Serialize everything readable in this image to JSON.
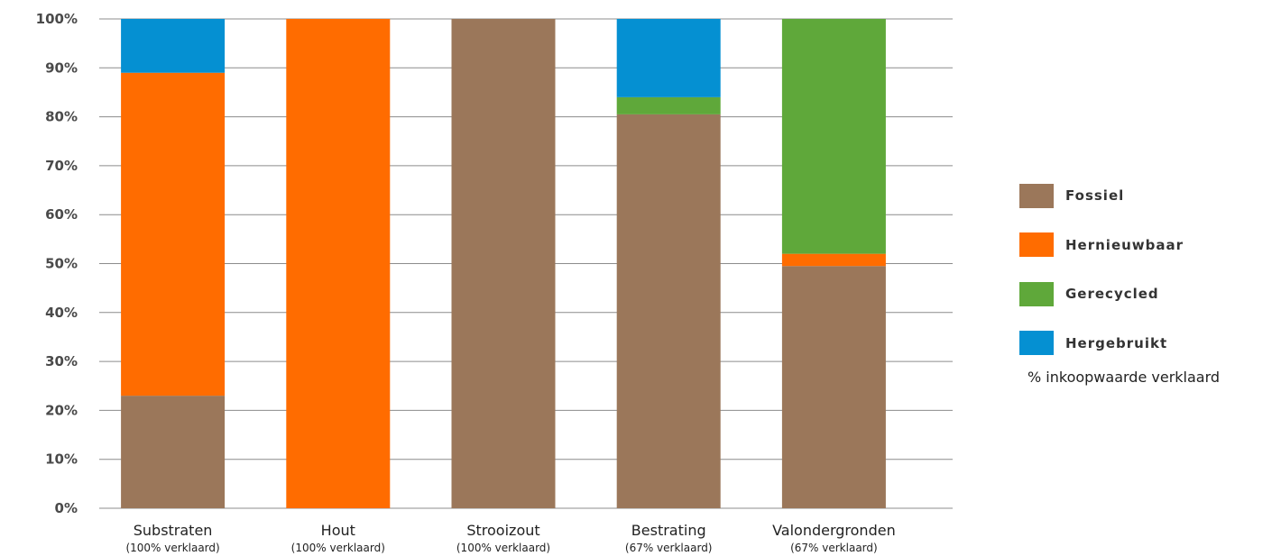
{
  "chart_data": {
    "type": "bar",
    "stacked": true,
    "categories": [
      "Substraten",
      "Hout",
      "Strooizout",
      "Bestrating",
      "Valondergronden"
    ],
    "category_subtitles": [
      "(100% verklaard)",
      "(100% verklaard)",
      "(100% verklaard)",
      "(67% verklaard)",
      "(67% verklaard)"
    ],
    "series": [
      {
        "name": "Fossiel",
        "color": "#9b775a",
        "values": [
          23,
          0,
          100,
          80.5,
          49.5
        ]
      },
      {
        "name": "Hernieuwbaar",
        "color": "#ff6c00",
        "values": [
          66,
          100,
          0,
          0,
          2.5
        ]
      },
      {
        "name": "Gerecycled",
        "color": "#5fa83a",
        "values": [
          0,
          0,
          0,
          3.5,
          48
        ]
      },
      {
        "name": "Hergebruikt",
        "color": "#0590d2",
        "values": [
          11,
          0,
          0,
          16,
          0
        ]
      }
    ],
    "yticks": [
      "0%",
      "10%",
      "20%",
      "30%",
      "40%",
      "50%",
      "60%",
      "70%",
      "80%",
      "90%",
      "100%"
    ],
    "ylim": [
      0,
      100
    ],
    "grid": true,
    "legend_position": "right",
    "legend_note": "% inkoopwaarde verklaard",
    "title": "",
    "xlabel": "",
    "ylabel": ""
  }
}
